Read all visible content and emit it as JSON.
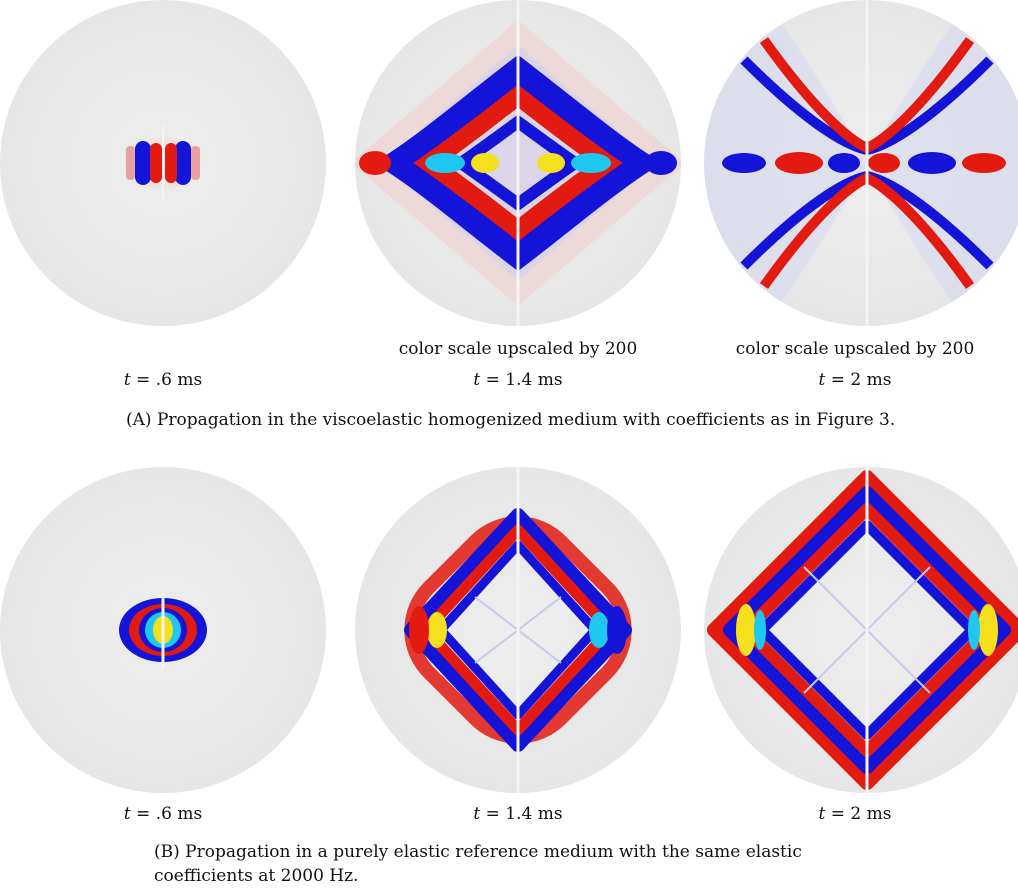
{
  "figure": {
    "row_a": {
      "panels": [
        {
          "time": ".6 ms",
          "note": ""
        },
        {
          "time": "1.4 ms",
          "note": "color scale upscaled by 200"
        },
        {
          "time": "2 ms",
          "note": "color scale upscaled by 200"
        }
      ],
      "caption_tag": "(A)",
      "caption_text": "Propagation in the viscoelastic homogenized medium with coefficients as in Figure 3."
    },
    "row_b": {
      "panels": [
        {
          "time": ".6 ms"
        },
        {
          "time": "1.4 ms"
        },
        {
          "time": "2 ms"
        }
      ],
      "caption_tag": "(B)",
      "caption_text": "Propagation in a purely elastic reference medium with the same elastic coefficients at 2000 Hz."
    },
    "time_prefix": "t = ",
    "colors": {
      "red": "#e21a10",
      "blue": "#1414d8",
      "cyan": "#1ec8f0",
      "yellow": "#f6e01e",
      "background": "#ececec"
    }
  }
}
